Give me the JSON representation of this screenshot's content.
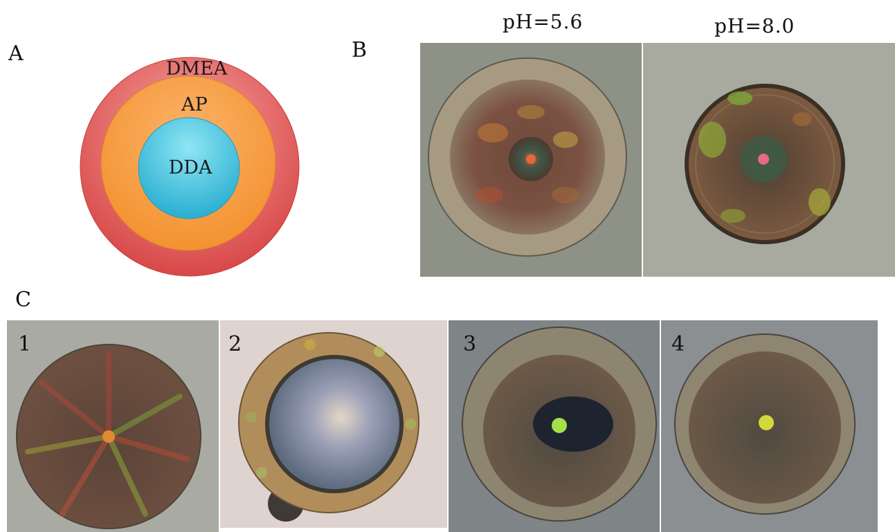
{
  "panels": {
    "a": {
      "label": "A",
      "layers": {
        "outer": "DMEA",
        "middle": "AP",
        "inner": "DDA"
      },
      "colors": {
        "outer": "#d94a4a",
        "middle": "#f59a3e",
        "inner": "#4fc6e0"
      }
    },
    "b": {
      "label": "B",
      "images": [
        {
          "caption": "pH=5.6"
        },
        {
          "caption": "pH=8.0"
        }
      ]
    },
    "c": {
      "label": "C",
      "images": [
        {
          "number": "1"
        },
        {
          "number": "2"
        },
        {
          "number": "3"
        },
        {
          "number": "4"
        }
      ]
    }
  }
}
